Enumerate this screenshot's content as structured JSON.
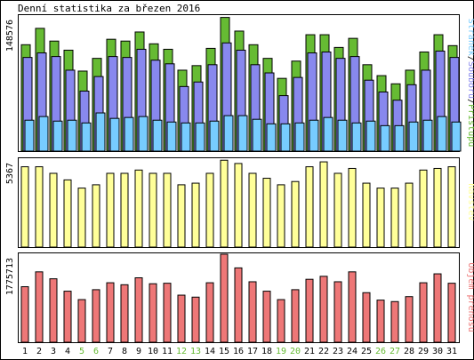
{
  "title": "Denní statistika za březen 2016",
  "panels": {
    "top": {
      "ymax_label": "148576",
      "right_labels": [
        "Stránek",
        "/",
        "Souborů",
        "/",
        "Přístupů"
      ]
    },
    "middle": {
      "ymax_label": "5367",
      "right_label": "Návštěv"
    },
    "bottom": {
      "ymax_label": "1775713",
      "right_label": "Objem přenosu"
    }
  },
  "colors": {
    "hits": "#66bb33",
    "files": "#8888ee",
    "pages": "#77ccff",
    "visits": "#ffff99",
    "traffic": "#ee7777",
    "weekday_label": "#000000",
    "weekend_label": "#66bb33"
  },
  "chart_data": {
    "type": "bar",
    "categories": [
      "1",
      "2",
      "3",
      "4",
      "5",
      "6",
      "7",
      "8",
      "9",
      "10",
      "11",
      "12",
      "13",
      "14",
      "15",
      "16",
      "17",
      "18",
      "19",
      "20",
      "21",
      "22",
      "23",
      "24",
      "25",
      "26",
      "27",
      "28",
      "29",
      "30",
      "31"
    ],
    "weekend_days": [
      "5",
      "6",
      "12",
      "13",
      "19",
      "20",
      "26",
      "27"
    ],
    "panels": [
      {
        "name": "top",
        "ylim": [
          0,
          148576
        ],
        "series": [
          {
            "name": "Přístupů",
            "color": "#66bb33",
            "values": [
              117000,
              135000,
              121000,
              111000,
              88000,
              102000,
              123000,
              121000,
              131000,
              118000,
              112000,
              89000,
              94000,
              113000,
              147000,
              132000,
              117000,
              102000,
              80000,
              99000,
              128000,
              128000,
              114000,
              124000,
              95000,
              83000,
              74000,
              89000,
              109000,
              128000,
              116000
            ]
          },
          {
            "name": "Souborů",
            "color": "#8888ee",
            "values": [
              103000,
              108000,
              104000,
              89000,
              66000,
              82000,
              104000,
              103000,
              112000,
              100000,
              96000,
              71000,
              76000,
              95000,
              119000,
              111000,
              95000,
              86000,
              61000,
              81000,
              108000,
              109000,
              102000,
              104000,
              78000,
              65000,
              56000,
              73000,
              89000,
              110000,
              103000
            ]
          },
          {
            "name": "Stránek",
            "color": "#77ccff",
            "values": [
              34000,
              38000,
              33000,
              34000,
              31000,
              42000,
              36000,
              37000,
              38000,
              34000,
              32000,
              31000,
              31000,
              33000,
              39000,
              39000,
              35000,
              30000,
              30000,
              31000,
              34000,
              37000,
              34000,
              31000,
              33000,
              28000,
              28000,
              32000,
              34000,
              38000,
              32000
            ]
          }
        ]
      },
      {
        "name": "middle",
        "ylim": [
          0,
          5367
        ],
        "series": [
          {
            "name": "Návštěv",
            "color": "#ffff99",
            "values": [
              4900,
              4900,
              4500,
              4100,
              3600,
              3800,
              4500,
              4500,
              4700,
              4500,
              4500,
              3800,
              3900,
              4500,
              5300,
              5100,
              4500,
              4200,
              3800,
              4000,
              4900,
              5200,
              4500,
              4800,
              3900,
              3600,
              3600,
              3900,
              4700,
              4800,
              4900
            ]
          }
        ]
      },
      {
        "name": "bottom",
        "ylim": [
          0,
          1775713
        ],
        "series": [
          {
            "name": "Objem přenosu",
            "color": "#ee7777",
            "values": [
              1120000,
              1420000,
              1280000,
              1030000,
              860000,
              1060000,
              1200000,
              1160000,
              1300000,
              1180000,
              1190000,
              950000,
              910000,
              1200000,
              1775713,
              1500000,
              1220000,
              1030000,
              860000,
              1060000,
              1270000,
              1330000,
              1220000,
              1420000,
              1000000,
              850000,
              820000,
              920000,
              1200000,
              1380000,
              1190000
            ]
          }
        ]
      }
    ]
  }
}
